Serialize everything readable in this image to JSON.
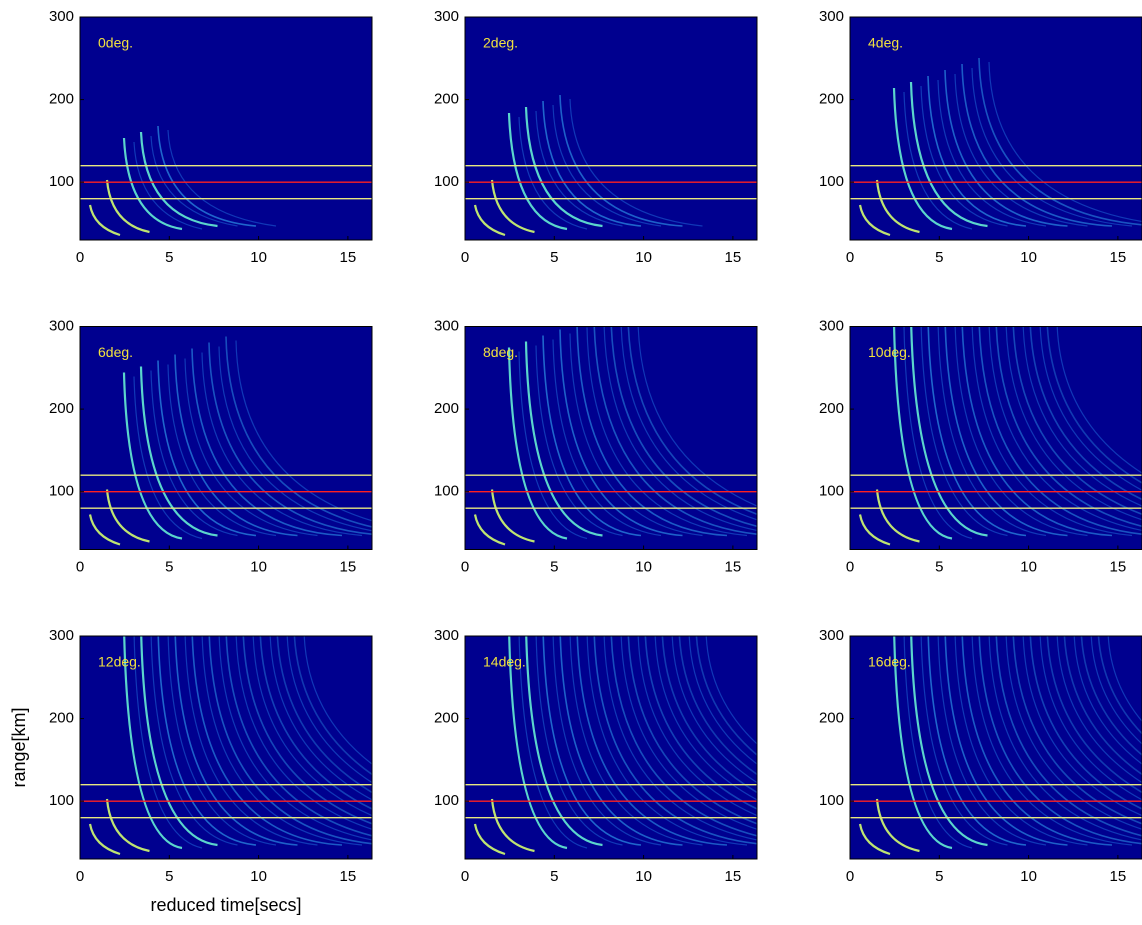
{
  "chart_data": [
    {
      "type": "heatmap",
      "title": "0deg.",
      "xlim": [
        0,
        16.35
      ],
      "ylim": [
        30,
        300
      ],
      "xticks": [
        0,
        5,
        10,
        15
      ],
      "yticks": [
        100,
        200,
        300
      ],
      "hlines": [
        {
          "value": 120,
          "color": "#e8e880"
        },
        {
          "value": 100,
          "color": "#ff2020"
        },
        {
          "value": 80,
          "color": "#e8e880"
        }
      ]
    },
    {
      "type": "heatmap",
      "title": "2deg.",
      "xlim": [
        0,
        16.35
      ],
      "ylim": [
        30,
        300
      ],
      "xticks": [
        0,
        5,
        10,
        15
      ],
      "yticks": [
        100,
        200,
        300
      ],
      "hlines": [
        {
          "value": 120,
          "color": "#e8e880"
        },
        {
          "value": 100,
          "color": "#ff2020"
        },
        {
          "value": 80,
          "color": "#e8e880"
        }
      ]
    },
    {
      "type": "heatmap",
      "title": "4deg.",
      "xlim": [
        0,
        16.35
      ],
      "ylim": [
        30,
        300
      ],
      "xticks": [
        0,
        5,
        10,
        15
      ],
      "yticks": [
        100,
        200,
        300
      ],
      "hlines": [
        {
          "value": 120,
          "color": "#e8e880"
        },
        {
          "value": 100,
          "color": "#ff2020"
        },
        {
          "value": 80,
          "color": "#e8e880"
        }
      ]
    },
    {
      "type": "heatmap",
      "title": "6deg.",
      "xlim": [
        0,
        16.35
      ],
      "ylim": [
        30,
        300
      ],
      "xticks": [
        0,
        5,
        10,
        15
      ],
      "yticks": [
        100,
        200,
        300
      ],
      "hlines": [
        {
          "value": 120,
          "color": "#e8e880"
        },
        {
          "value": 100,
          "color": "#ff2020"
        },
        {
          "value": 80,
          "color": "#e8e880"
        }
      ]
    },
    {
      "type": "heatmap",
      "title": "8deg.",
      "xlim": [
        0,
        16.35
      ],
      "ylim": [
        30,
        300
      ],
      "xticks": [
        0,
        5,
        10,
        15
      ],
      "yticks": [
        100,
        200,
        300
      ],
      "hlines": [
        {
          "value": 120,
          "color": "#e8e880"
        },
        {
          "value": 100,
          "color": "#ff2020"
        },
        {
          "value": 80,
          "color": "#e8e880"
        }
      ]
    },
    {
      "type": "heatmap",
      "title": "10deg.",
      "xlim": [
        0,
        16.35
      ],
      "ylim": [
        30,
        300
      ],
      "xticks": [
        0,
        5,
        10,
        15
      ],
      "yticks": [
        100,
        200,
        300
      ],
      "hlines": [
        {
          "value": 120,
          "color": "#e8e880"
        },
        {
          "value": 100,
          "color": "#ff2020"
        },
        {
          "value": 80,
          "color": "#e8e880"
        }
      ]
    },
    {
      "type": "heatmap",
      "title": "12deg.",
      "xlabel": "reduced time[secs]",
      "ylabel": "range[km]",
      "xlim": [
        0,
        16.35
      ],
      "ylim": [
        30,
        300
      ],
      "xticks": [
        0,
        5,
        10,
        15
      ],
      "yticks": [
        100,
        200,
        300
      ],
      "hlines": [
        {
          "value": 120,
          "color": "#e8e880"
        },
        {
          "value": 100,
          "color": "#ff2020"
        },
        {
          "value": 80,
          "color": "#e8e880"
        }
      ]
    },
    {
      "type": "heatmap",
      "title": "14deg.",
      "xlim": [
        0,
        16.35
      ],
      "ylim": [
        30,
        300
      ],
      "xticks": [
        0,
        5,
        10,
        15
      ],
      "yticks": [
        100,
        200,
        300
      ],
      "hlines": [
        {
          "value": 120,
          "color": "#e8e880"
        },
        {
          "value": 100,
          "color": "#ff2020"
        },
        {
          "value": 80,
          "color": "#e8e880"
        }
      ]
    },
    {
      "type": "heatmap",
      "title": "16deg.",
      "xlim": [
        0,
        16.35
      ],
      "ylim": [
        30,
        300
      ],
      "xticks": [
        0,
        5,
        10,
        15
      ],
      "yticks": [
        100,
        200,
        300
      ],
      "hlines": [
        {
          "value": 120,
          "color": "#e8e880"
        },
        {
          "value": 100,
          "color": "#ff2020"
        },
        {
          "value": 80,
          "color": "#e8e880"
        }
      ]
    }
  ]
}
